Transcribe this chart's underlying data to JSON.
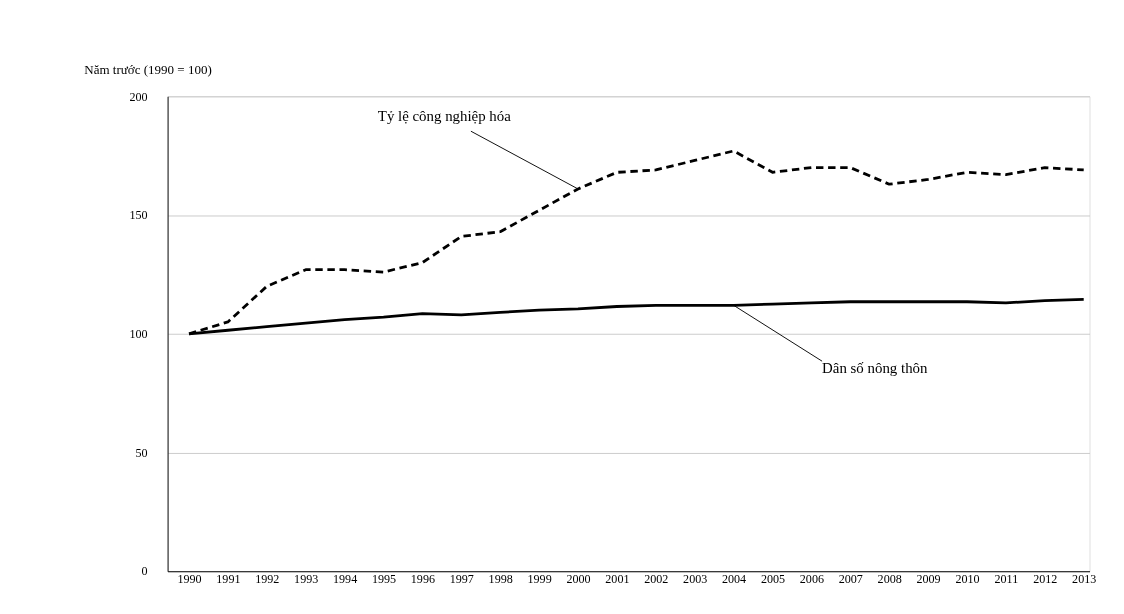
{
  "chart_data": {
    "type": "line",
    "ylabel": "Năm trước (1990 = 100)",
    "x": [
      1990,
      1991,
      1992,
      1993,
      1994,
      1995,
      1996,
      1997,
      1998,
      1999,
      2000,
      2001,
      2002,
      2003,
      2004,
      2005,
      2006,
      2007,
      2008,
      2009,
      2010,
      2011,
      2012,
      2013
    ],
    "series": [
      {
        "color": "#000000",
        "line_style": "dashed",
        "values": [
          100,
          105,
          120,
          127,
          127,
          126,
          130,
          141,
          143,
          152,
          161,
          168,
          169,
          173,
          177,
          168,
          170,
          170,
          163,
          165,
          168,
          167,
          170,
          169
        ]
      },
      {
        "color": "#000000",
        "line_style": "solid",
        "values": [
          100,
          101.5,
          103,
          104.5,
          106,
          107,
          108.5,
          108,
          109,
          110,
          110.5,
          111.5,
          112,
          112,
          112,
          112.5,
          113,
          113.5,
          113.5,
          113.5,
          113.5,
          113,
          114,
          114.5
        ]
      }
    ],
    "annotations": [
      {
        "text": "Tỷ lệ công nghiệp hóa",
        "x": 2000,
        "y": 161
      },
      {
        "text": "Dân số nông thôn",
        "x": 2004,
        "y": 112
      }
    ],
    "xlim": [
      1989.45,
      2013.15
    ],
    "xticks": [
      1990,
      1991,
      1992,
      1993,
      1994,
      1995,
      1996,
      1997,
      1998,
      1999,
      2000,
      2001,
      2002,
      2003,
      2004,
      2005,
      2006,
      2007,
      2008,
      2009,
      2010,
      2011,
      2012,
      2013
    ],
    "ylim": [
      0,
      200
    ],
    "yticks": [
      0,
      50,
      100,
      150,
      200
    ],
    "grid": "y",
    "marker": "none"
  }
}
